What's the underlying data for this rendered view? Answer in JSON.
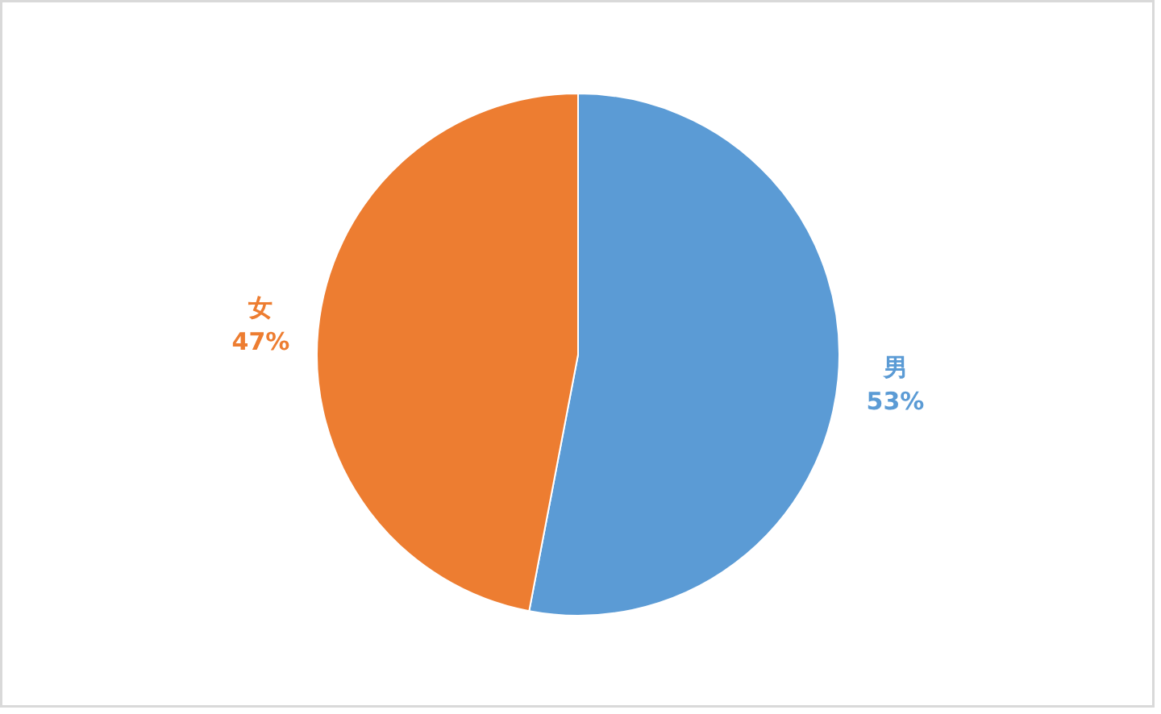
{
  "chart_data": {
    "type": "pie",
    "categories": [
      "男",
      "女"
    ],
    "values": [
      53,
      47
    ],
    "colors": [
      "#5b9bd5",
      "#ed7d31"
    ],
    "value_labels": [
      "53%",
      "47%"
    ]
  }
}
